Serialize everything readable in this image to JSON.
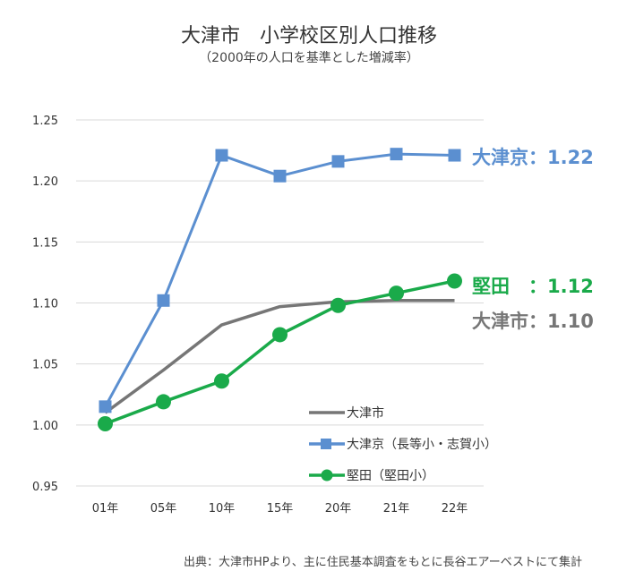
{
  "chart_data": {
    "type": "line",
    "title": "大津市　小学校区別人口推移",
    "subtitle": "（2000年の人口を基準とした増減率）",
    "categories": [
      "01年",
      "05年",
      "10年",
      "15年",
      "20年",
      "21年",
      "22年"
    ],
    "ylim": [
      0.95,
      1.25
    ],
    "yticks": [
      "0.95",
      "1.00",
      "1.05",
      "1.10",
      "1.15",
      "1.20",
      "1.25"
    ],
    "grid": true,
    "legend_position": "bottom-right",
    "series": [
      {
        "name": "大津市",
        "color": "#767676",
        "marker": "none",
        "values": [
          1.01,
          1.045,
          1.082,
          1.097,
          1.101,
          1.102,
          1.102
        ],
        "end_label": "大津市：1.10"
      },
      {
        "name": "大津京（長等小・志賀小）",
        "color": "#5b8fd0",
        "marker": "square",
        "values": [
          1.015,
          1.102,
          1.221,
          1.204,
          1.216,
          1.222,
          1.221
        ],
        "end_label": "大津京：1.22"
      },
      {
        "name": "堅田（堅田小）",
        "color": "#1aaa4a",
        "marker": "circle",
        "values": [
          1.001,
          1.019,
          1.036,
          1.074,
          1.098,
          1.108,
          1.118
        ],
        "end_label": "堅田　：1.12"
      }
    ]
  },
  "source": "出典：大津市HPより、主に住民基本調査をもとに長谷エアーベストにて集計"
}
